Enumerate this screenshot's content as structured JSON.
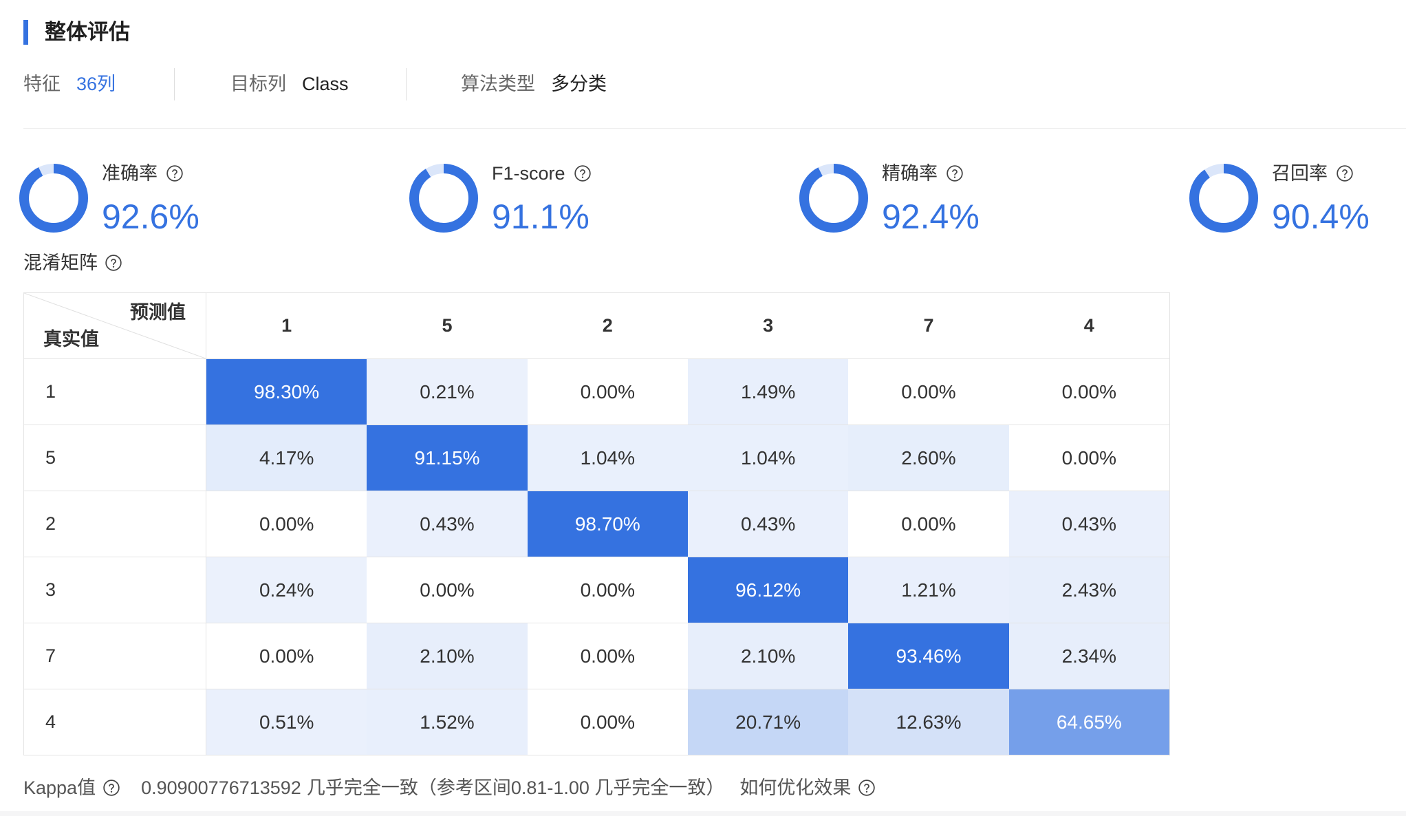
{
  "colors": {
    "accent": "#3572e0",
    "ring_track": "#dbe6fa",
    "heat_zero": "#ffffff",
    "heat_low": "#ebf1fc",
    "heat_high": "#3572e0"
  },
  "icons": {
    "help": "question-circle-icon"
  },
  "section": {
    "title": "整体评估"
  },
  "info": {
    "features": {
      "label": "特征",
      "value": "36列"
    },
    "target": {
      "label": "目标列",
      "value": "Class"
    },
    "algorithm": {
      "label": "算法类型",
      "value": "多分类"
    }
  },
  "metrics": [
    {
      "label": "准确率",
      "value": "92.6%"
    },
    {
      "label": "F1-score",
      "value": "91.1%"
    },
    {
      "label": "精确率",
      "value": "92.4%"
    },
    {
      "label": "召回率",
      "value": "90.4%"
    }
  ],
  "confusion_matrix": {
    "title": "混淆矩阵",
    "corner_predicted": "预测值",
    "corner_actual": "真实值",
    "columns": [
      "1",
      "5",
      "2",
      "3",
      "7",
      "4"
    ],
    "rows": [
      {
        "label": "1",
        "values": [
          "98.30%",
          "0.21%",
          "0.00%",
          "1.49%",
          "0.00%",
          "0.00%"
        ]
      },
      {
        "label": "5",
        "values": [
          "4.17%",
          "91.15%",
          "1.04%",
          "1.04%",
          "2.60%",
          "0.00%"
        ]
      },
      {
        "label": "2",
        "values": [
          "0.00%",
          "0.43%",
          "98.70%",
          "0.43%",
          "0.00%",
          "0.43%"
        ]
      },
      {
        "label": "3",
        "values": [
          "0.24%",
          "0.00%",
          "0.00%",
          "96.12%",
          "1.21%",
          "2.43%"
        ]
      },
      {
        "label": "7",
        "values": [
          "0.00%",
          "2.10%",
          "0.00%",
          "2.10%",
          "93.46%",
          "2.34%"
        ]
      },
      {
        "label": "4",
        "values": [
          "0.51%",
          "1.52%",
          "0.00%",
          "20.71%",
          "12.63%",
          "64.65%"
        ]
      }
    ]
  },
  "kappa": {
    "label": "Kappa值",
    "value": "0.90900776713592",
    "level": "几乎完全一致",
    "reference": "（参考区间0.81-1.00 几乎完全一致）",
    "optimize_link": "如何优化效果"
  }
}
